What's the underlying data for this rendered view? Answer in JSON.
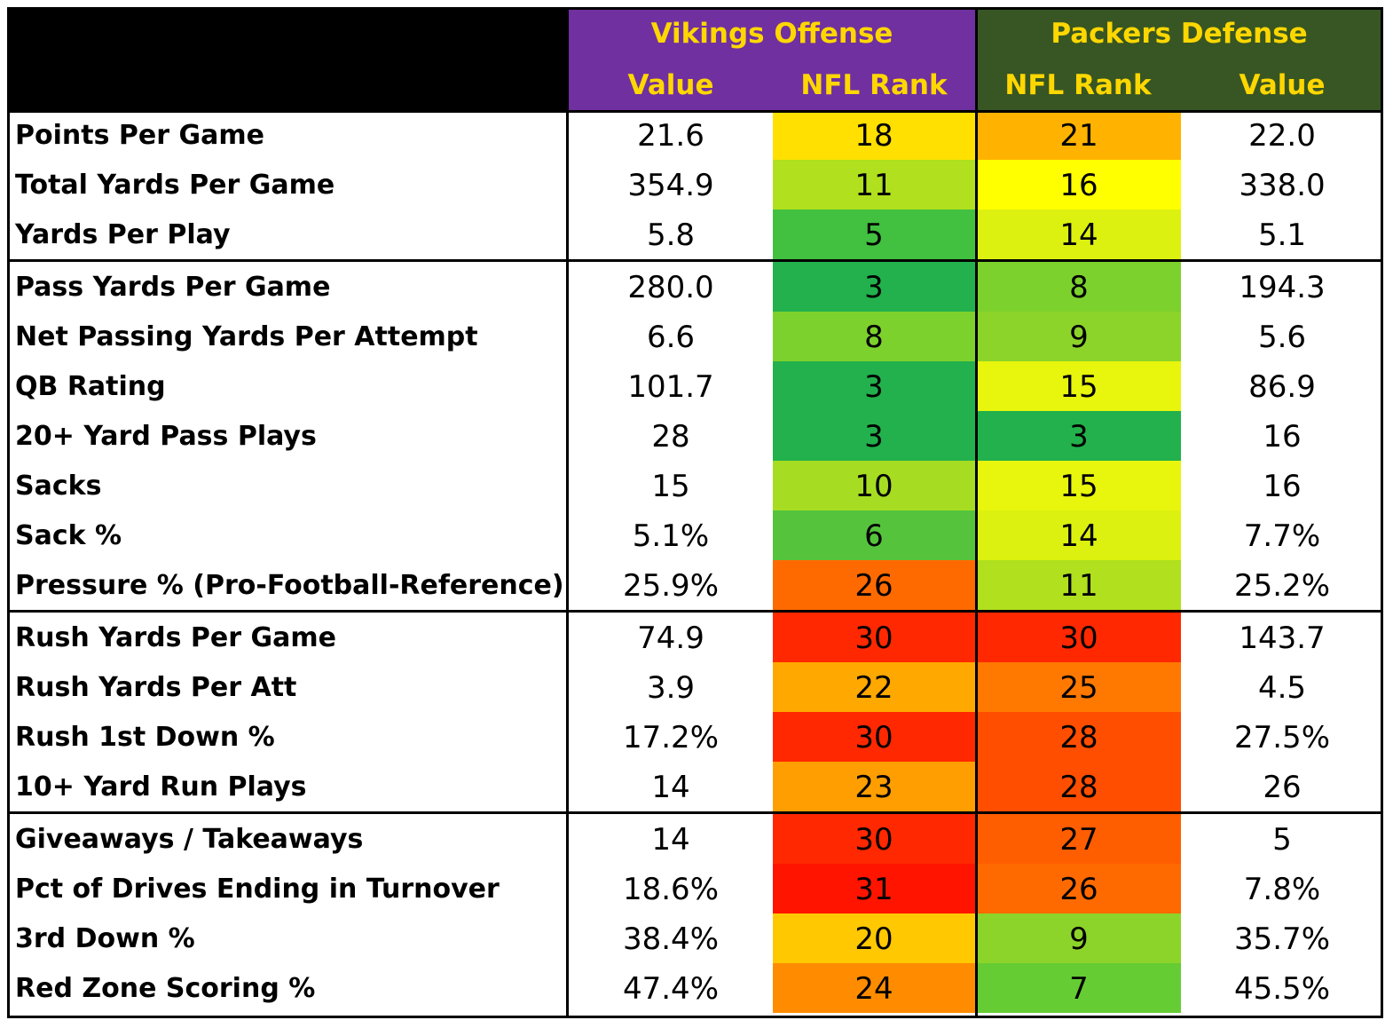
{
  "chart_data": {
    "type": "table",
    "title": "",
    "groups": [
      {
        "name": "Vikings Offense",
        "columns": [
          "Value",
          "NFL Rank"
        ],
        "color": "#7030A0"
      },
      {
        "name": "Packers Defense",
        "columns": [
          "NFL Rank",
          "Value"
        ],
        "color": "#375623"
      }
    ],
    "header_text_color": "#FFD700",
    "sections": [
      {
        "rows": [
          {
            "label": "Points Per Game",
            "vik_value": "21.6",
            "vik_rank": 18,
            "gb_rank": 21,
            "gb_value": "22.0"
          },
          {
            "label": "Total Yards Per Game",
            "vik_value": "354.9",
            "vik_rank": 11,
            "gb_rank": 16,
            "gb_value": "338.0"
          },
          {
            "label": "Yards Per Play",
            "vik_value": "5.8",
            "vik_rank": 5,
            "gb_rank": 14,
            "gb_value": "5.1"
          }
        ]
      },
      {
        "rows": [
          {
            "label": "Pass Yards Per Game",
            "vik_value": "280.0",
            "vik_rank": 3,
            "gb_rank": 8,
            "gb_value": "194.3"
          },
          {
            "label": "Net Passing Yards Per Attempt",
            "vik_value": "6.6",
            "vik_rank": 8,
            "gb_rank": 9,
            "gb_value": "5.6"
          },
          {
            "label": "QB Rating",
            "vik_value": "101.7",
            "vik_rank": 3,
            "gb_rank": 15,
            "gb_value": "86.9"
          },
          {
            "label": "20+ Yard Pass Plays",
            "vik_value": "28",
            "vik_rank": 3,
            "gb_rank": 3,
            "gb_value": "16"
          },
          {
            "label": "Sacks",
            "vik_value": "15",
            "vik_rank": 10,
            "gb_rank": 15,
            "gb_value": "16"
          },
          {
            "label": "Sack %",
            "vik_value": "5.1%",
            "vik_rank": 6,
            "gb_rank": 14,
            "gb_value": "7.7%"
          },
          {
            "label": "Pressure % (Pro-Football-Reference)",
            "vik_value": "25.9%",
            "vik_rank": 26,
            "gb_rank": 11,
            "gb_value": "25.2%"
          }
        ]
      },
      {
        "rows": [
          {
            "label": "Rush Yards Per Game",
            "vik_value": "74.9",
            "vik_rank": 30,
            "gb_rank": 30,
            "gb_value": "143.7"
          },
          {
            "label": "Rush Yards Per Att",
            "vik_value": "3.9",
            "vik_rank": 22,
            "gb_rank": 25,
            "gb_value": "4.5"
          },
          {
            "label": "Rush 1st Down %",
            "vik_value": "17.2%",
            "vik_rank": 30,
            "gb_rank": 28,
            "gb_value": "27.5%"
          },
          {
            "label": "10+ Yard Run Plays",
            "vik_value": "14",
            "vik_rank": 23,
            "gb_rank": 28,
            "gb_value": "26"
          }
        ]
      },
      {
        "rows": [
          {
            "label": "Giveaways / Takeaways",
            "vik_value": "14",
            "vik_rank": 30,
            "gb_rank": 27,
            "gb_value": "5"
          },
          {
            "label": "Pct of Drives Ending in Turnover",
            "vik_value": "18.6%",
            "vik_rank": 31,
            "gb_rank": 26,
            "gb_value": "7.8%"
          },
          {
            "label": "3rd Down %",
            "vik_value": "38.4%",
            "vik_rank": 20,
            "gb_rank": 9,
            "gb_value": "35.7%"
          },
          {
            "label": "Red Zone Scoring %",
            "vik_value": "47.4%",
            "vik_rank": 24,
            "gb_rank": 7,
            "gb_value": "45.5%"
          }
        ]
      }
    ],
    "rank_colors": {
      "3": "#22B14C",
      "5": "#42C040",
      "6": "#55C43C",
      "7": "#66CC33",
      "8": "#7DD12C",
      "9": "#8CD42A",
      "10": "#A6DD22",
      "11": "#B0E01E",
      "14": "#DCF10F",
      "15": "#E8F50C",
      "16": "#FFFF00",
      "18": "#FFE000",
      "20": "#FFC800",
      "21": "#FFB200",
      "22": "#FFA800",
      "23": "#FF9E00",
      "24": "#FF8C00",
      "25": "#FF7800",
      "26": "#FF6A00",
      "27": "#FF5E00",
      "28": "#FF4E00",
      "30": "#FF2800",
      "31": "#FF1400"
    }
  }
}
